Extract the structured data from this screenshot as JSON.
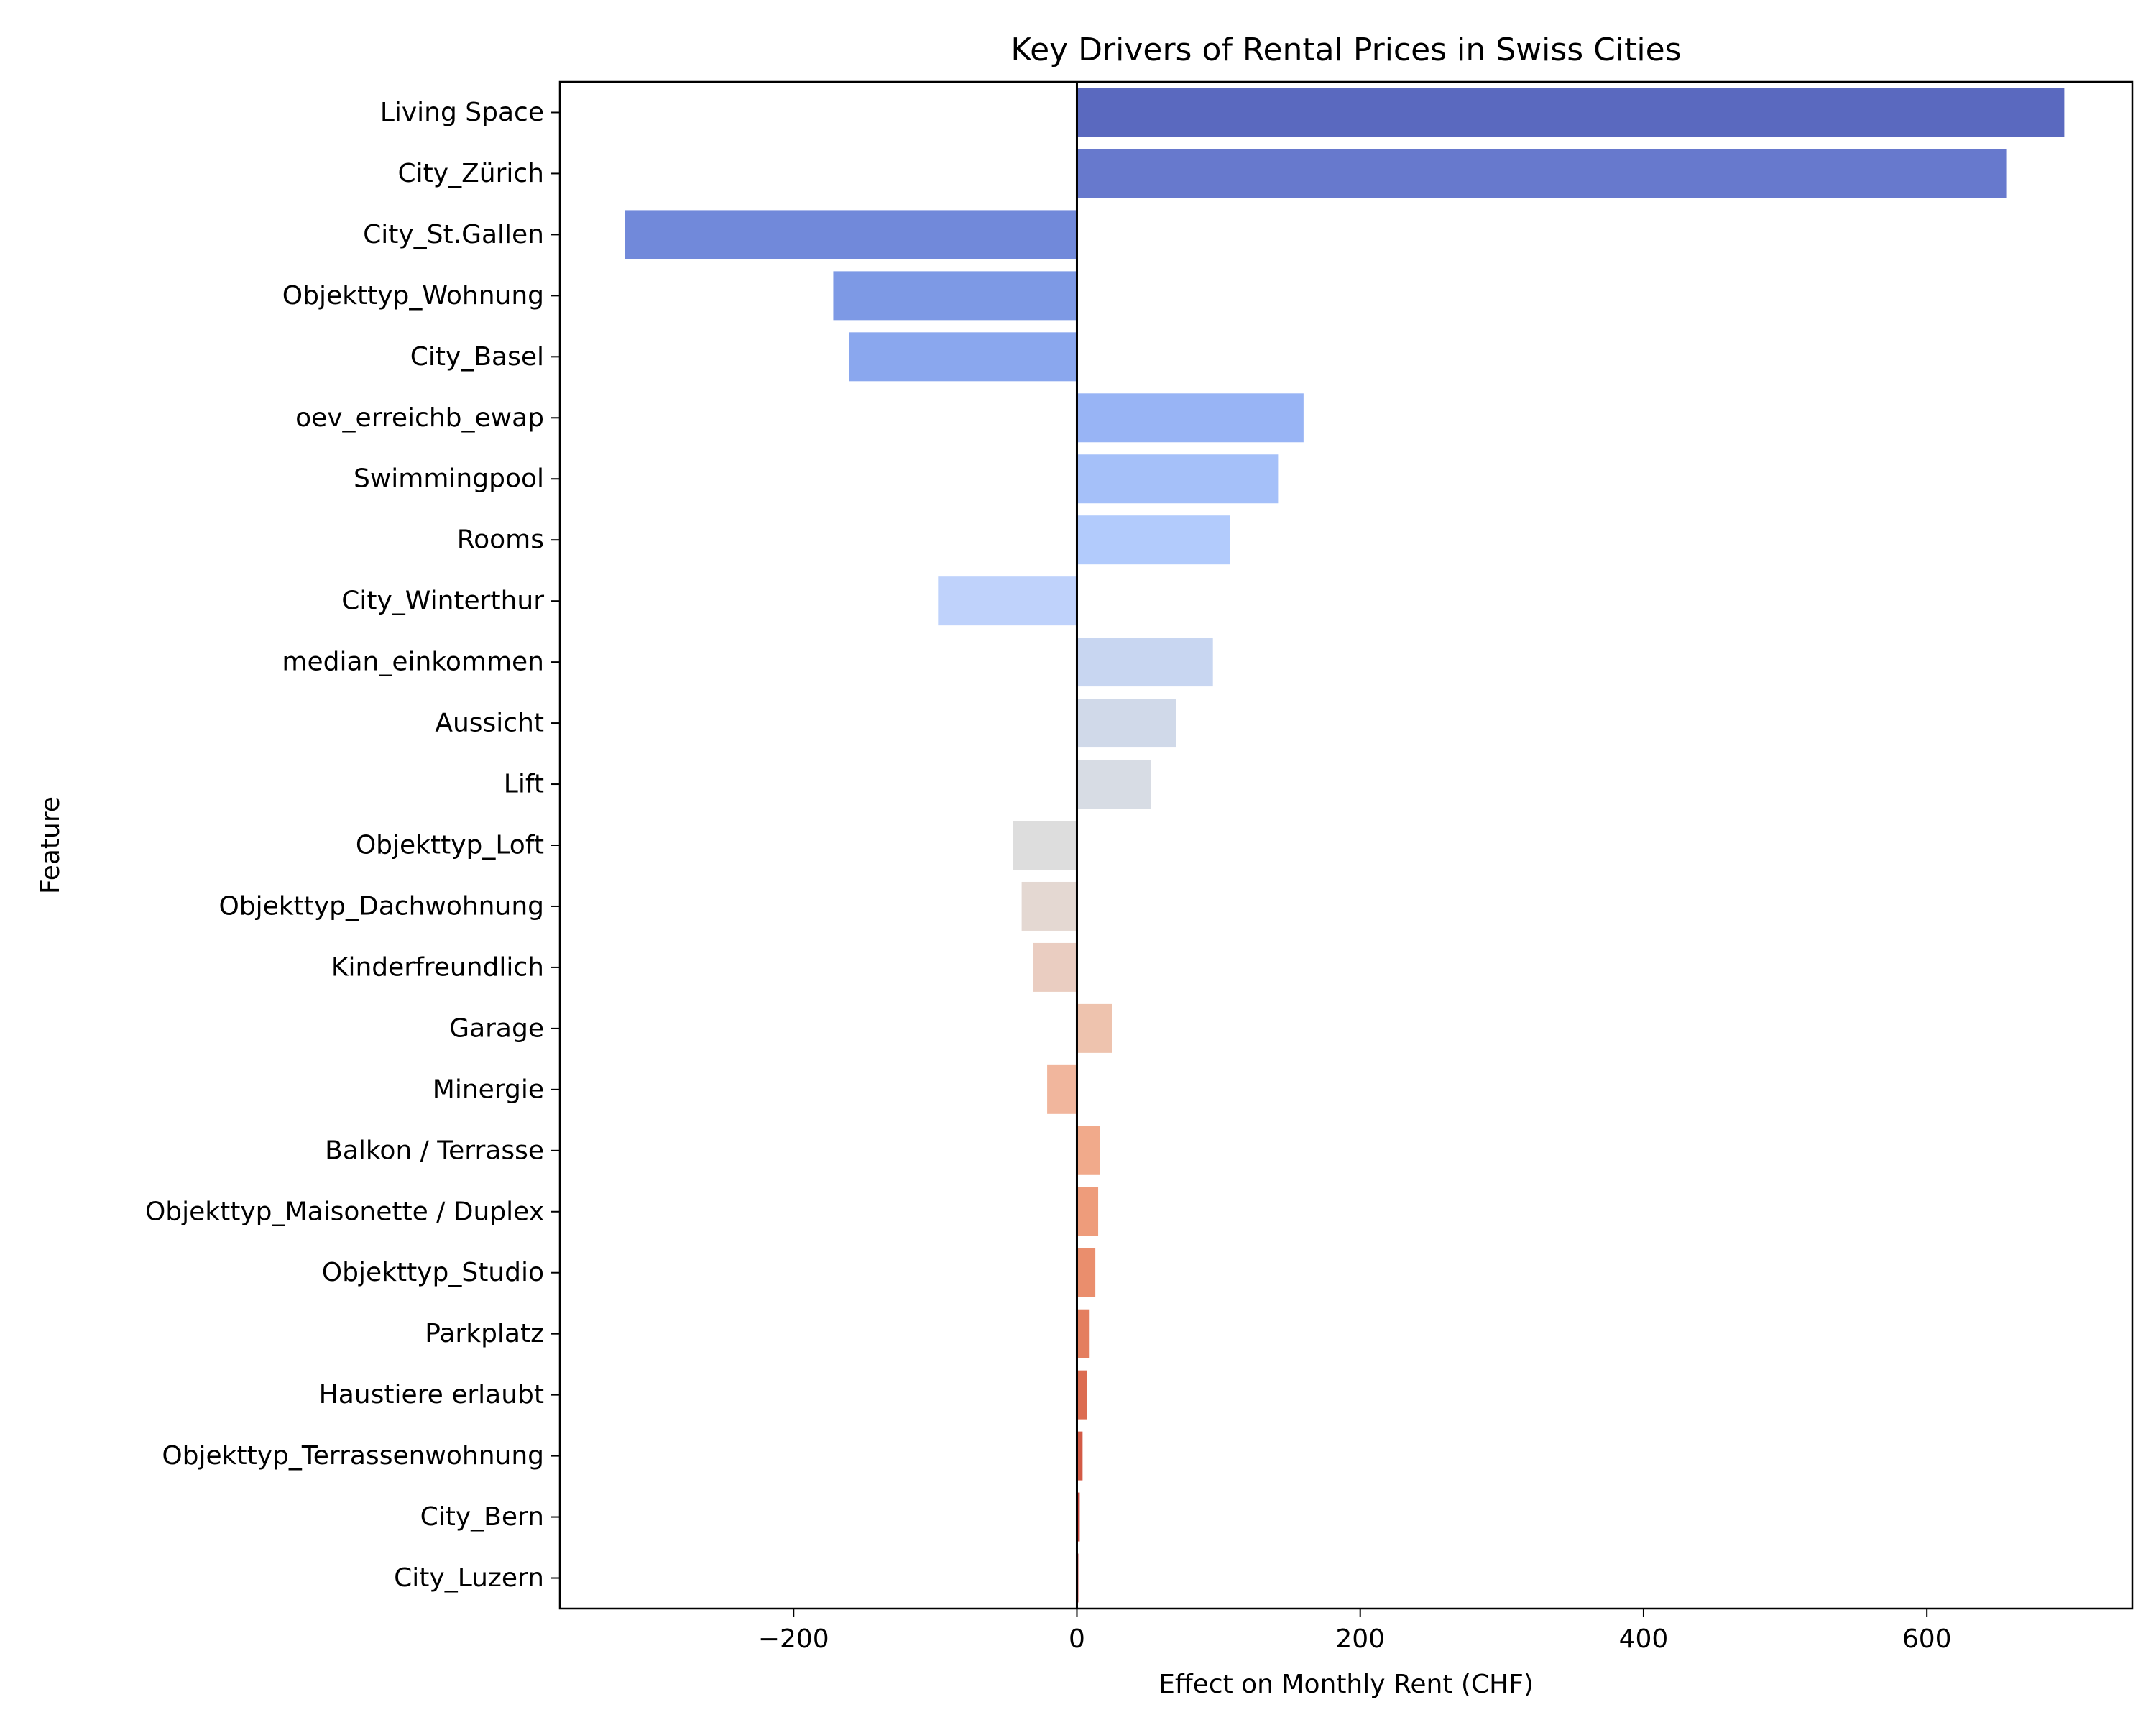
{
  "chart_data": {
    "type": "bar",
    "orientation": "horizontal",
    "title": "Key Drivers of Rental Prices in Swiss Cities",
    "xlabel": "Effect on Monthly Rent (CHF)",
    "ylabel": "Feature",
    "xlim": [
      -365,
      745
    ],
    "xticks": [
      -200,
      0,
      200,
      400,
      600
    ],
    "xtick_labels": [
      "−200",
      "0",
      "200",
      "400",
      "600"
    ],
    "grid": false,
    "zero_line": true,
    "categories": [
      "Living Space",
      "City_Zürich",
      "City_St.Gallen",
      "Objekttyp_Wohnung",
      "City_Basel",
      "oev_erreichb_ewap",
      "Swimmingpool",
      "Rooms",
      "City_Winterthur",
      "median_einkommen",
      "Aussicht",
      "Lift",
      "Objekttyp_Loft",
      "Objekttyp_Dachwohnung",
      "Kinderfreundlich",
      "Garage",
      "Minergie",
      "Balkon / Terrasse",
      "Objekttyp_Maisonette / Duplex",
      "Objekttyp_Studio",
      "Parkplatz",
      "Haustiere erlaubt",
      "Objekttyp_Terrassenwohnung",
      "City_Bern",
      "City_Luzern"
    ],
    "values": [
      697,
      656,
      -319,
      -172,
      -161,
      160,
      142,
      108,
      -98,
      96,
      70,
      52,
      -45,
      -39,
      -31,
      25,
      -21,
      16,
      15,
      13,
      9,
      7,
      4,
      2,
      1
    ],
    "colors": [
      "#5a69bf",
      "#6779cd",
      "#7189da",
      "#7d99e5",
      "#8aa7ee",
      "#98b4f5",
      "#a5c0f9",
      "#b2cbfc",
      "#bfd2fb",
      "#c8d6f1",
      "#d0d9e9",
      "#d7dce4",
      "#dddddd",
      "#e4d8d2",
      "#eacdc1",
      "#eec3ae",
      "#f1b69d",
      "#f1aa8b",
      "#ee9c7b",
      "#ea8e6d",
      "#e47e5f",
      "#dc6c51",
      "#d35a45",
      "#c8453b",
      "#be3433"
    ]
  }
}
